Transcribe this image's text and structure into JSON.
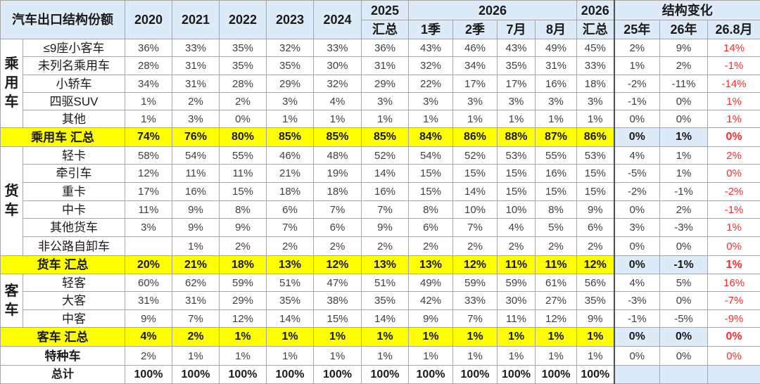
{
  "corner_label": "汽车出口结构份额",
  "years": [
    "2020",
    "2021",
    "2022",
    "2023",
    "2024"
  ],
  "col_2025": {
    "top": "2025",
    "bottom": "汇总"
  },
  "group_2026": {
    "label": "2026",
    "cols": [
      "1季",
      "2季",
      "7月",
      "8月"
    ]
  },
  "col_2026_total": {
    "top": "2026",
    "bottom": "汇总"
  },
  "change_group": {
    "label": "结构变化",
    "cols": [
      "25年",
      "26年",
      "26.8月"
    ]
  },
  "groups": {
    "passenger": "乘用车",
    "truck": "货车",
    "bus": "客车"
  },
  "rows": [
    {
      "label": "≤9座小客车",
      "values": [
        "36%",
        "33%",
        "35%",
        "32%",
        "33%",
        "36%",
        "43%",
        "46%",
        "43%",
        "49%",
        "45%"
      ],
      "changes": [
        "2%",
        "9%",
        "14%"
      ]
    },
    {
      "label": "未列名乘用车",
      "values": [
        "28%",
        "31%",
        "35%",
        "35%",
        "30%",
        "31%",
        "32%",
        "34%",
        "35%",
        "31%",
        "33%"
      ],
      "changes": [
        "1%",
        "2%",
        "-1%"
      ]
    },
    {
      "label": "小轿车",
      "values": [
        "34%",
        "31%",
        "28%",
        "29%",
        "32%",
        "29%",
        "22%",
        "17%",
        "17%",
        "16%",
        "18%"
      ],
      "changes": [
        "-2%",
        "-11%",
        "-14%"
      ]
    },
    {
      "label": "四驱SUV",
      "values": [
        "1%",
        "2%",
        "2%",
        "3%",
        "4%",
        "3%",
        "3%",
        "3%",
        "3%",
        "3%",
        "3%"
      ],
      "changes": [
        "-1%",
        "0%",
        "1%"
      ]
    },
    {
      "label": "其他",
      "values": [
        "1%",
        "3%",
        "0%",
        "1%",
        "1%",
        "1%",
        "1%",
        "1%",
        "1%",
        "1%",
        "1%"
      ],
      "changes": [
        "0%",
        "0%",
        "1%"
      ]
    },
    {
      "label": "乘用车 汇总",
      "values": [
        "74%",
        "76%",
        "80%",
        "85%",
        "85%",
        "85%",
        "84%",
        "86%",
        "88%",
        "87%",
        "86%"
      ],
      "changes": [
        "0%",
        "1%",
        "0%"
      ]
    },
    {
      "label": "轻卡",
      "values": [
        "58%",
        "54%",
        "55%",
        "46%",
        "48%",
        "52%",
        "54%",
        "52%",
        "53%",
        "55%",
        "53%"
      ],
      "changes": [
        "4%",
        "1%",
        "2%"
      ]
    },
    {
      "label": "牵引车",
      "values": [
        "12%",
        "11%",
        "11%",
        "21%",
        "19%",
        "14%",
        "15%",
        "15%",
        "15%",
        "16%",
        "15%"
      ],
      "changes": [
        "-5%",
        "1%",
        "0%"
      ]
    },
    {
      "label": "重卡",
      "values": [
        "17%",
        "16%",
        "15%",
        "18%",
        "18%",
        "16%",
        "15%",
        "14%",
        "15%",
        "15%",
        "15%"
      ],
      "changes": [
        "-2%",
        "-1%",
        "-2%"
      ]
    },
    {
      "label": "中卡",
      "values": [
        "11%",
        "9%",
        "8%",
        "6%",
        "7%",
        "7%",
        "8%",
        "10%",
        "10%",
        "8%",
        "9%"
      ],
      "changes": [
        "0%",
        "2%",
        "-1%"
      ]
    },
    {
      "label": "其他货车",
      "values": [
        "3%",
        "9%",
        "9%",
        "7%",
        "6%",
        "9%",
        "6%",
        "7%",
        "4%",
        "5%",
        "6%"
      ],
      "changes": [
        "3%",
        "-3%",
        "1%"
      ]
    },
    {
      "label": "非公路自卸车",
      "values": [
        "",
        "1%",
        "2%",
        "2%",
        "2%",
        "2%",
        "2%",
        "2%",
        "2%",
        "2%",
        "2%"
      ],
      "changes": [
        "0%",
        "0%",
        "0%"
      ]
    },
    {
      "label": "货车 汇总",
      "values": [
        "20%",
        "21%",
        "18%",
        "13%",
        "12%",
        "13%",
        "13%",
        "12%",
        "11%",
        "11%",
        "12%"
      ],
      "changes": [
        "0%",
        "-1%",
        "1%"
      ]
    },
    {
      "label": "轻客",
      "values": [
        "60%",
        "62%",
        "59%",
        "51%",
        "47%",
        "51%",
        "49%",
        "59%",
        "59%",
        "61%",
        "56%"
      ],
      "changes": [
        "4%",
        "5%",
        "16%"
      ]
    },
    {
      "label": "大客",
      "values": [
        "31%",
        "31%",
        "29%",
        "35%",
        "38%",
        "35%",
        "42%",
        "33%",
        "30%",
        "27%",
        "35%"
      ],
      "changes": [
        "-3%",
        "0%",
        "-7%"
      ]
    },
    {
      "label": "中客",
      "values": [
        "9%",
        "7%",
        "12%",
        "14%",
        "15%",
        "14%",
        "9%",
        "7%",
        "11%",
        "12%",
        "9%"
      ],
      "changes": [
        "-1%",
        "-5%",
        "-9%"
      ]
    },
    {
      "label": "客车 汇总",
      "values": [
        "4%",
        "2%",
        "1%",
        "1%",
        "1%",
        "1%",
        "1%",
        "1%",
        "1%",
        "1%",
        "1%"
      ],
      "changes": [
        "0%",
        "0%",
        "0%"
      ]
    },
    {
      "label": "特种车",
      "values": [
        "2%",
        "1%",
        "1%",
        "1%",
        "1%",
        "1%",
        "1%",
        "1%",
        "1%",
        "1%",
        "1%"
      ],
      "changes": [
        "0%",
        "0%",
        "0%"
      ]
    },
    {
      "label": "总计",
      "values": [
        "100%",
        "100%",
        "100%",
        "100%",
        "100%",
        "100%",
        "100%",
        "100%",
        "100%",
        "100%",
        "100%"
      ],
      "changes": [
        "",
        "",
        ""
      ]
    }
  ],
  "colors": {
    "header_bg": "#dcebf7",
    "subtotal_bg": "#ffff00",
    "negative_highlight": "#ff2b2b",
    "grid": "#a6a6a6"
  }
}
